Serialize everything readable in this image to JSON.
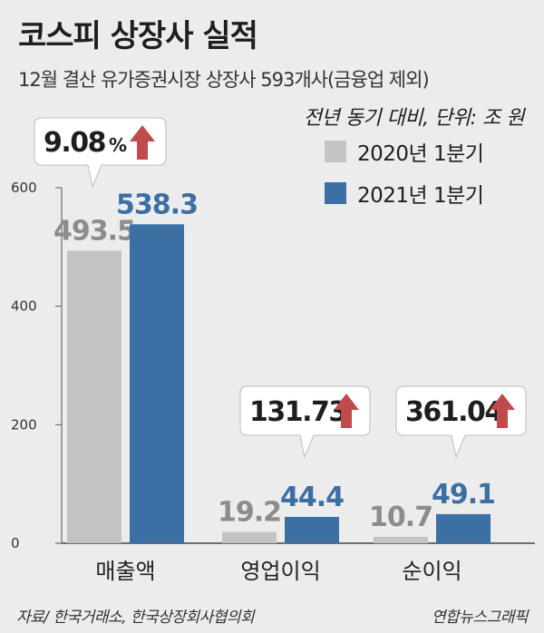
{
  "title": "코스피 상장사 실적",
  "subtitle": "12월 결산 유가증권시장 상장사 593개사(금융업 제외)",
  "unit_note": "전년 동기 대비, 단위: 조 원",
  "source": "자료/ 한국거래소, 한국상장회사협의회",
  "credit": "연합뉴스그래픽",
  "colors": {
    "series_2020": "#c3c3c3",
    "series_2021": "#3c6fa3",
    "arrow": "#bf4b4d"
  },
  "chart_data": {
    "type": "bar",
    "categories": [
      "매출액",
      "영업이익",
      "순이익"
    ],
    "series": [
      {
        "name": "2020년 1분기",
        "values": [
          493.5,
          19.2,
          10.7
        ],
        "labels": [
          "493.5",
          "19.2",
          "10.7"
        ]
      },
      {
        "name": "2021년 1분기",
        "values": [
          538.3,
          44.4,
          49.1
        ],
        "labels": [
          "538.3",
          "44.4",
          "49.1"
        ]
      }
    ],
    "growth": [
      {
        "value": "9.08",
        "suffix": "%"
      },
      {
        "value": "131.73",
        "suffix": ""
      },
      {
        "value": "361.04",
        "suffix": ""
      }
    ],
    "y_ticks": [
      0,
      200,
      400,
      600
    ],
    "ylim": [
      0,
      600
    ],
    "legend_position": "top-right",
    "grid": false
  }
}
